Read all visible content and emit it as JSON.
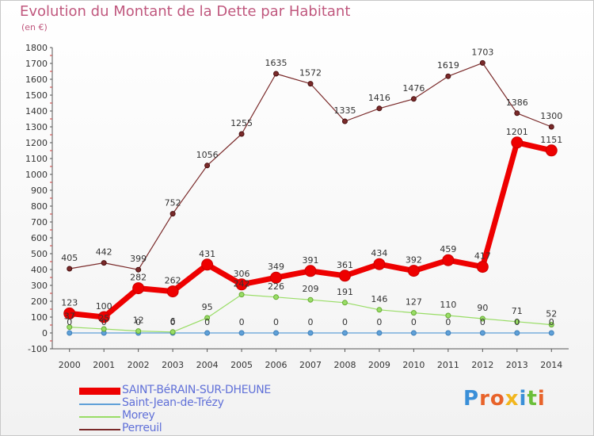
{
  "title": "Evolution du Montant de la Dette par Habitant",
  "unit": "(en €)",
  "logo": {
    "text": "Proxiti",
    "colors": [
      "#3a8fd8",
      "#e8632a",
      "#e8632a",
      "#f2b61d",
      "#3a8fd8",
      "#6bbf3a",
      "#e8632a"
    ]
  },
  "chart_data": {
    "type": "line",
    "title": "Evolution du Montant de la Dette par Habitant",
    "ylabel": "(en €)",
    "xlabel": "",
    "x": [
      2000,
      2001,
      2002,
      2003,
      2004,
      2005,
      2006,
      2007,
      2008,
      2009,
      2010,
      2011,
      2012,
      2013,
      2014
    ],
    "ylim": [
      -100,
      1800
    ],
    "yticks": [
      -100,
      0,
      100,
      200,
      300,
      400,
      500,
      600,
      700,
      800,
      900,
      1000,
      1100,
      1200,
      1300,
      1400,
      1500,
      1600,
      1700,
      1800
    ],
    "grid": false,
    "legend": "bottom-left",
    "series": [
      {
        "name": "SAINT-BéRAIN-SUR-DHEUNE",
        "color": "#ee0000",
        "values": [
          123,
          100,
          282,
          262,
          431,
          306,
          349,
          391,
          361,
          434,
          392,
          459,
          417,
          1201,
          1151
        ],
        "labels": [
          "123",
          "100",
          "282",
          "262",
          "431",
          "306",
          "349",
          "391",
          "361",
          "434",
          "392",
          "459",
          "417",
          "1201",
          "1151"
        ]
      },
      {
        "name": "Saint-Jean-de-Trézy",
        "color": "#5fa0d8",
        "values": [
          0,
          0,
          0,
          0,
          0,
          0,
          0,
          0,
          0,
          0,
          0,
          0,
          0,
          0,
          0
        ],
        "labels": [
          "0",
          "0",
          "0",
          "0",
          "0",
          "0",
          "0",
          "0",
          "0",
          "0",
          "0",
          "0",
          "0",
          "0",
          "0"
        ]
      },
      {
        "name": "Morey",
        "color": "#99dd66",
        "values": [
          37,
          25,
          12,
          6,
          95,
          242,
          226,
          209,
          191,
          146,
          127,
          110,
          90,
          71,
          52
        ],
        "labels": [
          "37",
          "25",
          "12",
          "6",
          "95",
          "242",
          "226",
          "209",
          "191",
          "146",
          "127",
          "110",
          "90",
          "71",
          "52"
        ]
      },
      {
        "name": "Perreuil",
        "color": "#7a2a2a",
        "values": [
          405,
          442,
          399,
          752,
          1056,
          1255,
          1635,
          1572,
          1335,
          1416,
          1476,
          1619,
          1703,
          1386,
          1300
        ],
        "labels": [
          "405",
          "442",
          "399",
          "752",
          "1056",
          "1255",
          "1635",
          "1572",
          "1335",
          "1416",
          "1476",
          "1619",
          "1703",
          "1386",
          "1300"
        ]
      }
    ]
  }
}
